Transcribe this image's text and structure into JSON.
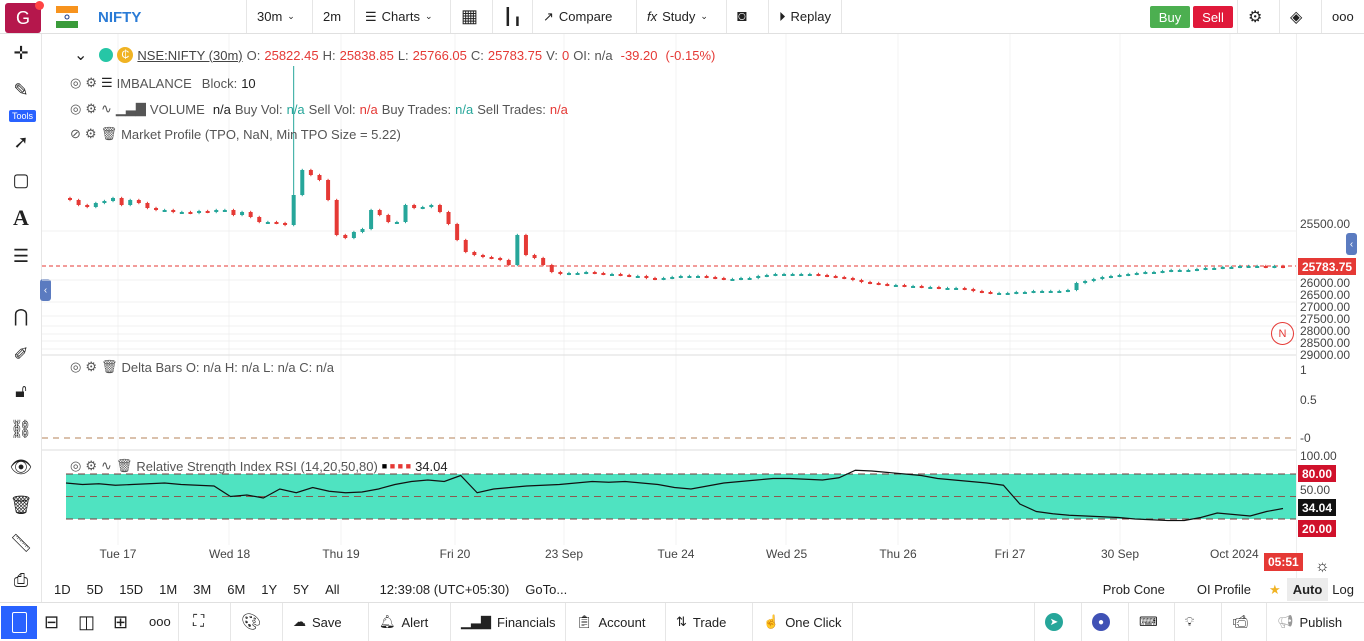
{
  "topbar": {
    "avatar_letter": "G",
    "symbol": "NIFTY",
    "interval": "30m",
    "interval2": "2m",
    "charts": "Charts",
    "compare": "Compare",
    "study": "Study",
    "replay": "Replay",
    "buy": "Buy",
    "sell": "Sell"
  },
  "legend": {
    "symbol": "NSE:NIFTY (30m)",
    "o_label": "O:",
    "o": "25822.45",
    "h_label": "H:",
    "h": "25838.85",
    "l_label": "L:",
    "l": "25766.05",
    "c_label": "C:",
    "c": "25783.75",
    "v_label": "V:",
    "v": "0",
    "oi_label": "OI:",
    "oi": "n/a",
    "change": "-39.20",
    "change_pct": "(-0.15%)",
    "imbalance": "IMBALANCE",
    "block": "Block:",
    "block_val": "10",
    "volume": "VOLUME",
    "vol_val": "n/a",
    "buy_vol": "Buy Vol:",
    "buy_vol_val": "n/a",
    "sell_vol": "Sell Vol:",
    "sell_vol_val": "n/a",
    "buy_trades": "Buy Trades:",
    "buy_trades_val": "n/a",
    "sell_trades": "Sell Trades:",
    "sell_trades_val": "n/a",
    "market_profile": "Market Profile (TPO, NaN, Min TPO Size = 5.22)",
    "delta": "Delta Bars O: n/a H: n/a L: n/a C: n/a",
    "rsi": "Relative Strength Index RSI (14,20,50,80)",
    "rsi_val": "34.04"
  },
  "left_toolbar": {
    "tools_badge": "Tools"
  },
  "price_axis": [
    "25500.00",
    "26000.00",
    "26500.00",
    "27000.00",
    "27500.00",
    "28000.00",
    "28500.00",
    "29000.00"
  ],
  "last_price": "25783.75",
  "delta_axis": [
    "1",
    "0.5",
    "-0"
  ],
  "rsi_axis": [
    "100.00",
    "50.00"
  ],
  "rsi_labels": {
    "upper": "80.00",
    "current": "34.04",
    "lower": "20.00"
  },
  "time_axis": [
    "Tue 17",
    "Wed 18",
    "Thu 19",
    "Fri 20",
    "23 Sep",
    "Tue 24",
    "Wed 25",
    "Thu 26",
    "Fri 27",
    "30 Sep",
    "Oct 2024"
  ],
  "countdown": "05:51",
  "news_badge": "N",
  "rangebar": {
    "ranges": [
      "1D",
      "5D",
      "15D",
      "1M",
      "3M",
      "6M",
      "1Y",
      "5Y",
      "All"
    ],
    "clock": "12:39:08 (UTC+05:30)",
    "goto": "GoTo...",
    "prob_cone": "Prob Cone",
    "oi_profile": "OI Profile",
    "auto": "Auto",
    "log": "Log"
  },
  "bottombar": {
    "save": "Save",
    "alert": "Alert",
    "financials": "Financials",
    "account": "Account",
    "trade": "Trade",
    "one_click": "One Click",
    "publish": "Publish"
  },
  "colors": {
    "up": "#26a69a",
    "down": "#e53935",
    "rsi_fill": "#4fe3c1",
    "accent": "#2962ff"
  },
  "chart_data": {
    "type": "candlestick",
    "interval": "30m",
    "closes": [
      26114,
      26089,
      26079,
      26099,
      26109,
      26124,
      26089,
      26114,
      26099,
      26074,
      26064,
      26064,
      26054,
      26054,
      26049,
      26059,
      26054,
      26064,
      26064,
      26039,
      26054,
      26029,
      26004,
      26004,
      25999,
      25989,
      26139,
      26264,
      26239,
      26214,
      26114,
      25939,
      25924,
      25954,
      25969,
      26064,
      26039,
      26004,
      26004,
      26089,
      26074,
      26079,
      26089,
      26054,
      25994,
      25914,
      25854,
      25839,
      25829,
      25824,
      25814,
      25789,
      25939,
      25839,
      25824,
      25789,
      25754,
      25744,
      25749,
      25749,
      25754,
      25749,
      25744,
      25744,
      25739,
      25734,
      25734,
      25724,
      25719,
      25724,
      25729,
      25734,
      25734,
      25734,
      25729,
      25724,
      25719,
      25719,
      25724,
      25724,
      25734,
      25739,
      25744,
      25744,
      25744,
      25744,
      25744,
      25739,
      25734,
      25729,
      25724,
      25714,
      25704,
      25699,
      25694,
      25689,
      25689,
      25684,
      25684,
      25679,
      25679,
      25674,
      25674,
      25674,
      25669,
      25659,
      25654,
      25649,
      25649,
      25649,
      25654,
      25654,
      25659,
      25659,
      25659,
      25659,
      25664,
      25699,
      25709,
      25719,
      25729,
      25734,
      25739,
      25744,
      25749,
      25754,
      25754,
      25759,
      25764,
      25764,
      25764,
      25769,
      25774,
      25774,
      25779,
      25779,
      25784,
      25784,
      25784,
      25779,
      25784,
      25779
    ],
    "spike": {
      "index": 26,
      "high": 26784
    },
    "rsi": [
      68,
      66,
      67,
      65,
      66,
      67,
      68,
      66,
      65,
      64,
      50,
      52,
      48,
      60,
      55,
      62,
      57,
      55,
      56,
      60,
      66,
      70,
      72,
      70,
      78,
      55,
      60,
      62,
      64,
      65,
      66,
      68,
      70,
      69,
      70,
      68,
      66,
      62,
      60,
      64,
      68,
      70,
      72,
      74,
      74,
      73,
      72,
      75,
      85,
      84,
      82,
      80,
      78,
      74,
      72,
      70,
      68,
      65,
      40,
      30,
      27,
      25,
      24,
      23,
      22,
      20,
      19,
      18,
      18,
      22,
      28,
      26,
      24,
      30,
      34
    ],
    "rsi_levels": [
      20,
      50,
      80
    ]
  }
}
